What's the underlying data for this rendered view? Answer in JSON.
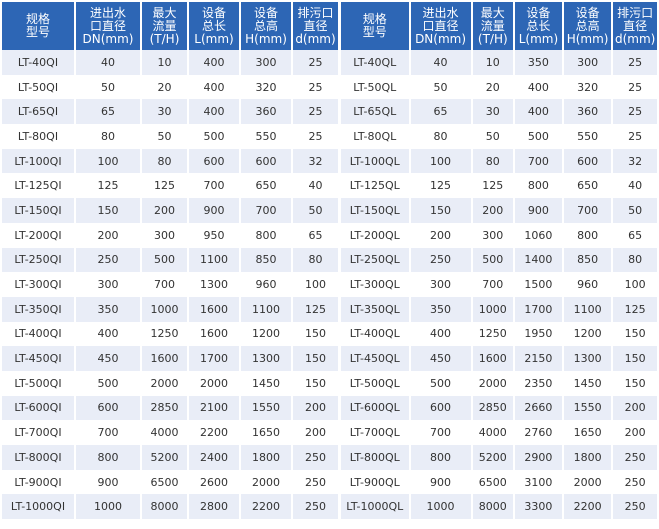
{
  "tables": [
    {
      "headers": [
        "规格\n型号",
        "进出水\n口直径\nDN(mm)",
        "最大\n流量\n(T/H)",
        "设备\n总长\nL(mm)",
        "设备\n总高\nH(mm)",
        "排污口\n直径\nd(mm)"
      ],
      "rows": [
        [
          "LT-40QI",
          "40",
          "10",
          "400",
          "300",
          "25"
        ],
        [
          "LT-50QI",
          "50",
          "20",
          "400",
          "320",
          "25"
        ],
        [
          "LT-65QI",
          "65",
          "30",
          "400",
          "360",
          "25"
        ],
        [
          "LT-80QI",
          "80",
          "50",
          "500",
          "550",
          "25"
        ],
        [
          "LT-100QI",
          "100",
          "80",
          "600",
          "600",
          "32"
        ],
        [
          "LT-125QI",
          "125",
          "125",
          "700",
          "650",
          "40"
        ],
        [
          "LT-150QI",
          "150",
          "200",
          "900",
          "700",
          "50"
        ],
        [
          "LT-200QI",
          "200",
          "300",
          "950",
          "800",
          "65"
        ],
        [
          "LT-250QI",
          "250",
          "500",
          "1100",
          "850",
          "80"
        ],
        [
          "LT-300QI",
          "300",
          "700",
          "1300",
          "960",
          "100"
        ],
        [
          "LT-350QI",
          "350",
          "1000",
          "1600",
          "1100",
          "125"
        ],
        [
          "LT-400QI",
          "400",
          "1250",
          "1600",
          "1200",
          "150"
        ],
        [
          "LT-450QI",
          "450",
          "1600",
          "1700",
          "1300",
          "150"
        ],
        [
          "LT-500QI",
          "500",
          "2000",
          "2000",
          "1450",
          "150"
        ],
        [
          "LT-600QI",
          "600",
          "2850",
          "2100",
          "1550",
          "200"
        ],
        [
          "LT-700QI",
          "700",
          "4000",
          "2200",
          "1650",
          "200"
        ],
        [
          "LT-800QI",
          "800",
          "5200",
          "2400",
          "1800",
          "250"
        ],
        [
          "LT-900QI",
          "900",
          "6500",
          "2600",
          "2000",
          "250"
        ],
        [
          "LT-1000QI",
          "1000",
          "8000",
          "2800",
          "2200",
          "250"
        ]
      ]
    },
    {
      "headers": [
        "规格\n型号",
        "进出水\n口直径\nDN(mm)",
        "最大\n流量\n(T/H)",
        "设备\n总长\nL(mm)",
        "设备\n总高\nH(mm)",
        "排污口\n直径\nd(mm)"
      ],
      "rows": [
        [
          "LT-40QL",
          "40",
          "10",
          "350",
          "300",
          "25"
        ],
        [
          "LT-50QL",
          "50",
          "20",
          "400",
          "320",
          "25"
        ],
        [
          "LT-65QL",
          "65",
          "30",
          "400",
          "360",
          "25"
        ],
        [
          "LT-80QL",
          "80",
          "50",
          "500",
          "550",
          "25"
        ],
        [
          "LT-100QL",
          "100",
          "80",
          "700",
          "600",
          "32"
        ],
        [
          "LT-125QL",
          "125",
          "125",
          "800",
          "650",
          "40"
        ],
        [
          "LT-150QL",
          "150",
          "200",
          "900",
          "700",
          "50"
        ],
        [
          "LT-200QL",
          "200",
          "300",
          "1060",
          "800",
          "65"
        ],
        [
          "LT-250QL",
          "250",
          "500",
          "1400",
          "850",
          "80"
        ],
        [
          "LT-300QL",
          "300",
          "700",
          "1500",
          "960",
          "100"
        ],
        [
          "LT-350QL",
          "350",
          "1000",
          "1700",
          "1100",
          "125"
        ],
        [
          "LT-400QL",
          "400",
          "1250",
          "1950",
          "1200",
          "150"
        ],
        [
          "LT-450QL",
          "450",
          "1600",
          "2150",
          "1300",
          "150"
        ],
        [
          "LT-500QL",
          "500",
          "2000",
          "2350",
          "1450",
          "150"
        ],
        [
          "LT-600QL",
          "600",
          "2850",
          "2660",
          "1550",
          "200"
        ],
        [
          "LT-700QL",
          "700",
          "4000",
          "2760",
          "1650",
          "200"
        ],
        [
          "LT-800QL",
          "800",
          "5200",
          "2900",
          "1800",
          "250"
        ],
        [
          "LT-900QL",
          "900",
          "6500",
          "3100",
          "2000",
          "250"
        ],
        [
          "LT-1000QL",
          "1000",
          "8000",
          "3300",
          "2200",
          "250"
        ]
      ]
    }
  ]
}
